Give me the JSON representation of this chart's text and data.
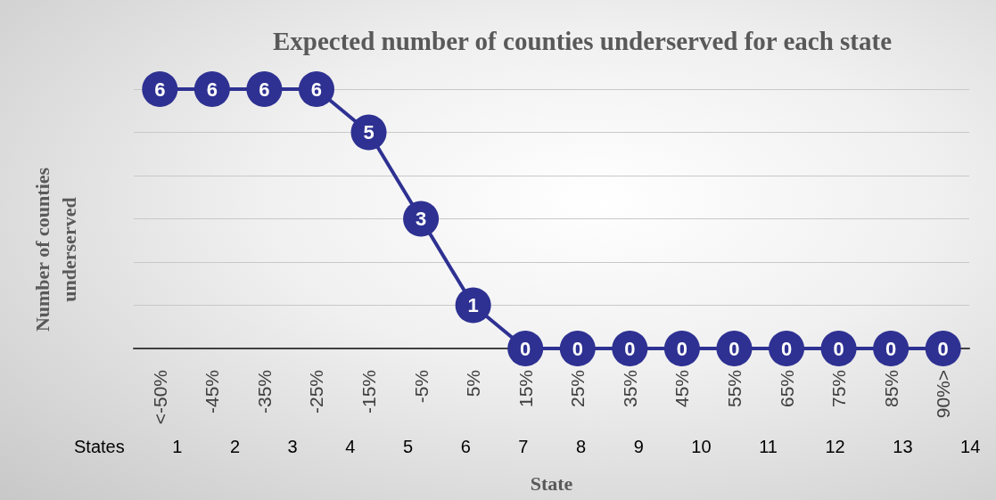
{
  "chart_data": {
    "type": "line",
    "title": "Expected number of counties underserved for each state",
    "xlabel": "State",
    "ylabel": "Number of counties underserved",
    "categories": [
      "<-50%",
      "-45%",
      "-35%",
      "-25%",
      "-15%",
      "-5%",
      "5%",
      "15%",
      "25%",
      "35%",
      "45%",
      "55%",
      "65%",
      "75%",
      "85%",
      "90%>"
    ],
    "series": [
      {
        "color": "#2e3192",
        "values": [
          6,
          6,
          6,
          6,
          5,
          3,
          1,
          0,
          0,
          0,
          0,
          0,
          0,
          0,
          0,
          0
        ]
      }
    ],
    "ylim": [
      0,
      6
    ],
    "yticks": [
      {
        "value": 0,
        "label": null
      },
      {
        "value": 1,
        "label": null
      },
      {
        "value": 2,
        "label": null
      },
      {
        "value": 3,
        "label": null
      },
      {
        "value": 4,
        "label": null
      },
      {
        "value": 5,
        "label": null
      },
      {
        "value": 6,
        "label": null
      }
    ],
    "tick_labels": "x",
    "grid": "y",
    "marker": "circle",
    "line_style": "solid",
    "data_labels": true,
    "annotations": [
      "States 1 2 3 4 5 6 7 8 9 10 11 12 13 14"
    ]
  }
}
